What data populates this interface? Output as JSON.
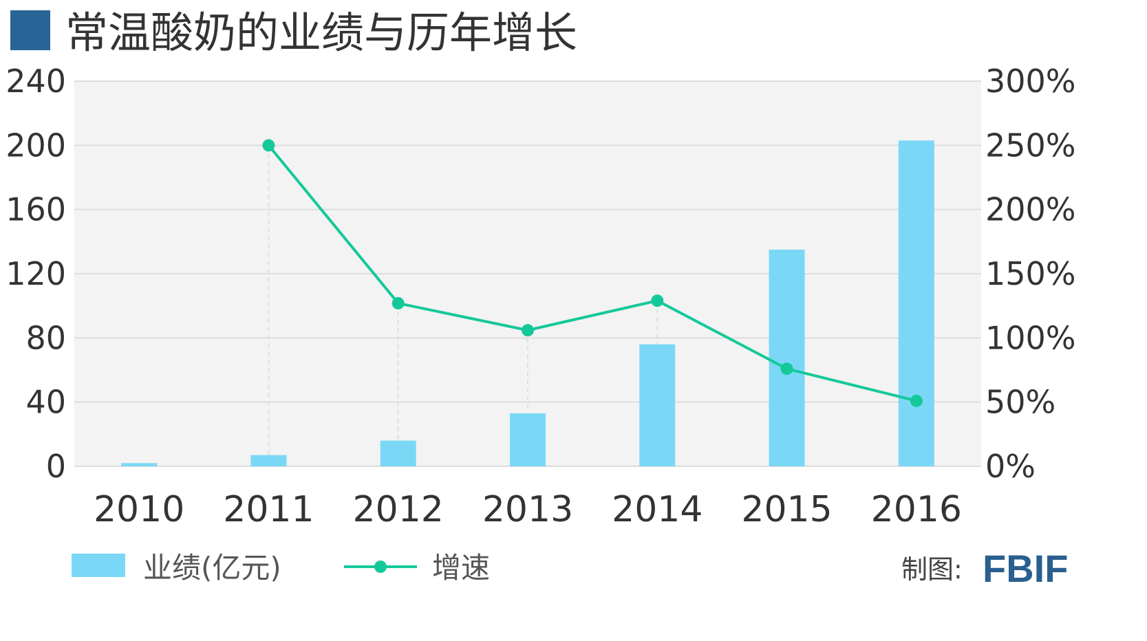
{
  "title": "常温酸奶的业绩与历年增长",
  "credit": {
    "label": "制图:",
    "brand": "FBIF"
  },
  "colors": {
    "bar": "#7ad8f6",
    "line": "#15c89a",
    "title_marker": "#2a6496",
    "plot_bg": "#f3f3f3",
    "grid": "#dddddd",
    "text": "#333333",
    "brand": "#2a5f8f"
  },
  "chart_data": {
    "type": "bar",
    "categories": [
      "2010",
      "2011",
      "2012",
      "2013",
      "2014",
      "2015",
      "2016"
    ],
    "series": [
      {
        "name": "业绩(亿元)",
        "type": "bar",
        "axis": "left",
        "values": [
          2,
          7,
          16,
          33,
          76,
          135,
          203
        ]
      },
      {
        "name": "增速",
        "type": "line",
        "axis": "right",
        "values": [
          null,
          250,
          127,
          106,
          129,
          76,
          51
        ]
      }
    ],
    "y_left": {
      "ticks": [
        "0",
        "40",
        "80",
        "120",
        "160",
        "200",
        "240"
      ],
      "ylim": [
        0,
        240
      ]
    },
    "y_right": {
      "ticks": [
        "0%",
        "50%",
        "100%",
        "150%",
        "200%",
        "250%",
        "300%"
      ],
      "ylim": [
        0,
        300
      ]
    },
    "grid": true,
    "legend_position": "bottom-left"
  }
}
